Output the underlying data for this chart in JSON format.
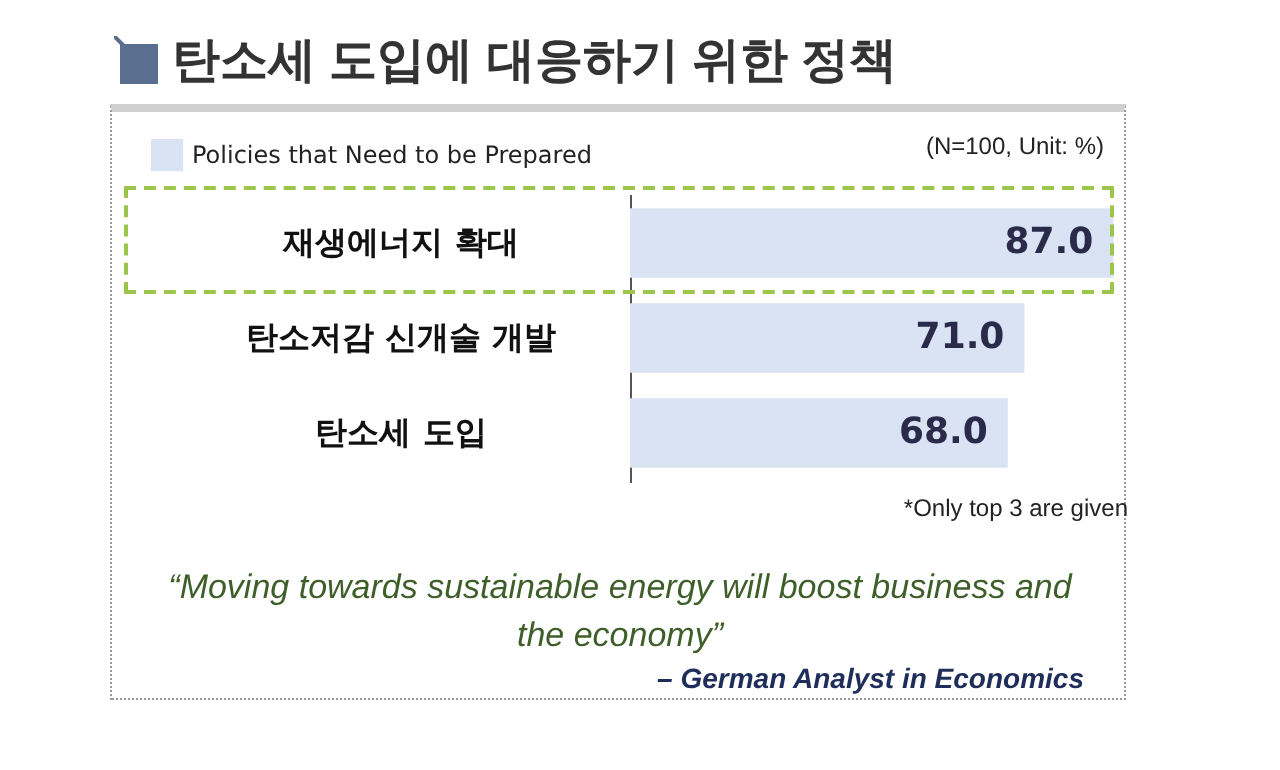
{
  "chart_data": {
    "type": "bar",
    "orientation": "horizontal",
    "title": "탄소세 도입에 대응하기 위한 정책",
    "categories": [
      "재생에너지 확대",
      "탄소저감 신개술 개발",
      "탄소세 도입"
    ],
    "series": [
      {
        "name": "Policies that Need to be Prepared",
        "color": "#dae3f3",
        "values": [
          87.0,
          71.0,
          68.0
        ],
        "value_labels": [
          "87.0",
          "71.0",
          "68.0"
        ]
      }
    ],
    "legend": "top left",
    "annotations": [
      "(N=100, Unit: %)",
      "*Only top 3 are given",
      "“Moving towards sustainable energy will boost business and the economy”",
      "– German Analyst in Economics"
    ]
  }
}
